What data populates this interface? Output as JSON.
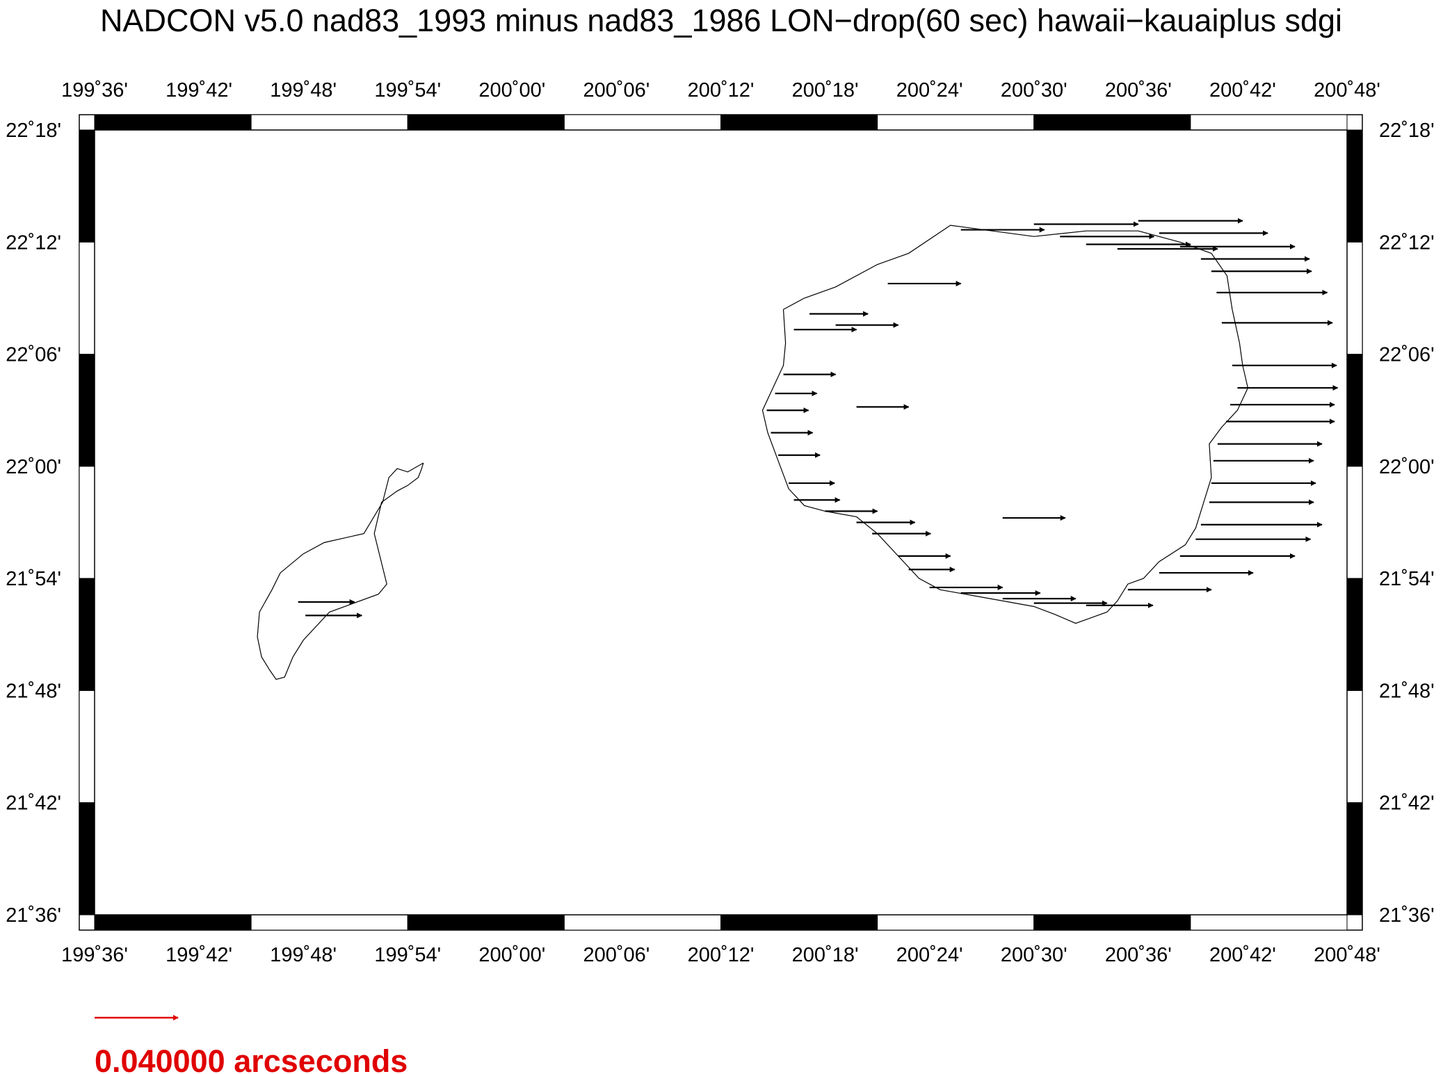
{
  "title": "NADCON v5.0 nad83_1993 minus nad83_1986 LON−drop(60 sec) hawaii−kauaiplus sdgi",
  "axes": {
    "lon_ticks": [
      "199˚36'",
      "199˚42'",
      "199˚48'",
      "199˚54'",
      "200˚00'",
      "200˚06'",
      "200˚12'",
      "200˚18'",
      "200˚24'",
      "200˚30'",
      "200˚36'",
      "200˚42'",
      "200˚48'"
    ],
    "lat_ticks": [
      "22˚18'",
      "22˚12'",
      "22˚06'",
      "22˚00'",
      "21˚54'",
      "21˚48'",
      "21˚42'",
      "21˚36'"
    ],
    "lon_range_deg": [
      199.6,
      200.8
    ],
    "lat_range_deg": [
      21.6,
      22.3
    ]
  },
  "legend": {
    "scale_label": "0.040000 arcseconds",
    "scale_value_arcsec": 0.04,
    "color": "#e00000"
  },
  "colors": {
    "coastline": "#000000",
    "vectors": "#000000",
    "frame": "#000000"
  },
  "coastlines": [
    {
      "name": "Niihau",
      "points": [
        [
          199.915,
          22.003
        ],
        [
          199.9,
          21.995
        ],
        [
          199.89,
          21.998
        ],
        [
          199.882,
          21.99
        ],
        [
          199.876,
          21.968
        ],
        [
          199.858,
          21.94
        ],
        [
          199.82,
          21.932
        ],
        [
          199.8,
          21.922
        ],
        [
          199.778,
          21.905
        ],
        [
          199.77,
          21.89
        ],
        [
          199.758,
          21.87
        ],
        [
          199.756,
          21.848
        ],
        [
          199.76,
          21.83
        ],
        [
          199.768,
          21.818
        ],
        [
          199.774,
          21.81
        ],
        [
          199.782,
          21.812
        ],
        [
          199.79,
          21.83
        ],
        [
          199.8,
          21.845
        ],
        [
          199.825,
          21.87
        ],
        [
          199.872,
          21.886
        ],
        [
          199.88,
          21.895
        ],
        [
          199.868,
          21.94
        ],
        [
          199.875,
          21.968
        ],
        [
          199.89,
          21.978
        ],
        [
          199.9,
          21.983
        ],
        [
          199.91,
          21.99
        ],
        [
          199.913,
          21.997
        ],
        [
          199.915,
          22.003
        ]
      ]
    },
    {
      "name": "Kauai",
      "points": [
        [
          200.26,
          22.14
        ],
        [
          200.28,
          22.15
        ],
        [
          200.31,
          22.16
        ],
        [
          200.35,
          22.18
        ],
        [
          200.38,
          22.19
        ],
        [
          200.42,
          22.215
        ],
        [
          200.46,
          22.21
        ],
        [
          200.5,
          22.205
        ],
        [
          200.55,
          22.21
        ],
        [
          200.6,
          22.21
        ],
        [
          200.64,
          22.2
        ],
        [
          200.67,
          22.19
        ],
        [
          200.685,
          22.17
        ],
        [
          200.69,
          22.14
        ],
        [
          200.697,
          22.11
        ],
        [
          200.7,
          22.09
        ],
        [
          200.705,
          22.07
        ],
        [
          200.695,
          22.05
        ],
        [
          200.68,
          22.035
        ],
        [
          200.668,
          22.02
        ],
        [
          200.67,
          21.99
        ],
        [
          200.66,
          21.96
        ],
        [
          200.655,
          21.945
        ],
        [
          200.645,
          21.93
        ],
        [
          200.62,
          21.915
        ],
        [
          200.605,
          21.9
        ],
        [
          200.59,
          21.895
        ],
        [
          200.58,
          21.88
        ],
        [
          200.57,
          21.87
        ],
        [
          200.555,
          21.865
        ],
        [
          200.54,
          21.86
        ],
        [
          200.52,
          21.868
        ],
        [
          200.5,
          21.875
        ],
        [
          200.47,
          21.88
        ],
        [
          200.44,
          21.885
        ],
        [
          200.41,
          21.89
        ],
        [
          200.39,
          21.9
        ],
        [
          200.37,
          21.92
        ],
        [
          200.35,
          21.94
        ],
        [
          200.33,
          21.955
        ],
        [
          200.3,
          21.96
        ],
        [
          200.28,
          21.965
        ],
        [
          200.265,
          21.98
        ],
        [
          200.255,
          22.005
        ],
        [
          200.245,
          22.03
        ],
        [
          200.24,
          22.05
        ],
        [
          200.25,
          22.07
        ],
        [
          200.26,
          22.09
        ],
        [
          200.262,
          22.11
        ],
        [
          200.26,
          22.14
        ]
      ]
    }
  ],
  "vectors_arcsec": [
    {
      "lon": 199.795,
      "lat": 21.879,
      "dlon": 0.027
    },
    {
      "lon": 199.802,
      "lat": 21.867,
      "dlon": 0.027
    },
    {
      "lon": 200.43,
      "lat": 22.211,
      "dlon": 0.04
    },
    {
      "lon": 200.5,
      "lat": 22.216,
      "dlon": 0.05
    },
    {
      "lon": 200.525,
      "lat": 22.205,
      "dlon": 0.045
    },
    {
      "lon": 200.55,
      "lat": 22.198,
      "dlon": 0.05
    },
    {
      "lon": 200.58,
      "lat": 22.194,
      "dlon": 0.048
    },
    {
      "lon": 200.62,
      "lat": 22.208,
      "dlon": 0.052
    },
    {
      "lon": 200.6,
      "lat": 22.219,
      "dlon": 0.05
    },
    {
      "lon": 200.64,
      "lat": 22.196,
      "dlon": 0.055
    },
    {
      "lon": 200.66,
      "lat": 22.185,
      "dlon": 0.052
    },
    {
      "lon": 200.67,
      "lat": 22.174,
      "dlon": 0.048
    },
    {
      "lon": 200.675,
      "lat": 22.155,
      "dlon": 0.053
    },
    {
      "lon": 200.68,
      "lat": 22.128,
      "dlon": 0.053
    },
    {
      "lon": 200.69,
      "lat": 22.09,
      "dlon": 0.05
    },
    {
      "lon": 200.695,
      "lat": 22.07,
      "dlon": 0.048
    },
    {
      "lon": 200.688,
      "lat": 22.055,
      "dlon": 0.05
    },
    {
      "lon": 200.684,
      "lat": 22.04,
      "dlon": 0.052
    },
    {
      "lon": 200.676,
      "lat": 22.02,
      "dlon": 0.05
    },
    {
      "lon": 200.672,
      "lat": 22.005,
      "dlon": 0.048
    },
    {
      "lon": 200.67,
      "lat": 21.985,
      "dlon": 0.05
    },
    {
      "lon": 200.668,
      "lat": 21.968,
      "dlon": 0.05
    },
    {
      "lon": 200.66,
      "lat": 21.948,
      "dlon": 0.058
    },
    {
      "lon": 200.655,
      "lat": 21.935,
      "dlon": 0.055
    },
    {
      "lon": 200.64,
      "lat": 21.92,
      "dlon": 0.055
    },
    {
      "lon": 200.62,
      "lat": 21.905,
      "dlon": 0.045
    },
    {
      "lon": 200.59,
      "lat": 21.89,
      "dlon": 0.04
    },
    {
      "lon": 200.55,
      "lat": 21.876,
      "dlon": 0.032
    },
    {
      "lon": 200.5,
      "lat": 21.878,
      "dlon": 0.035
    },
    {
      "lon": 200.47,
      "lat": 21.882,
      "dlon": 0.035
    },
    {
      "lon": 200.43,
      "lat": 21.887,
      "dlon": 0.038
    },
    {
      "lon": 200.4,
      "lat": 21.892,
      "dlon": 0.035
    },
    {
      "lon": 200.37,
      "lat": 21.92,
      "dlon": 0.025
    },
    {
      "lon": 200.33,
      "lat": 21.95,
      "dlon": 0.028
    },
    {
      "lon": 200.3,
      "lat": 21.96,
      "dlon": 0.025
    },
    {
      "lon": 200.27,
      "lat": 21.97,
      "dlon": 0.022
    },
    {
      "lon": 200.265,
      "lat": 21.985,
      "dlon": 0.022
    },
    {
      "lon": 200.255,
      "lat": 22.01,
      "dlon": 0.02
    },
    {
      "lon": 200.248,
      "lat": 22.03,
      "dlon": 0.02
    },
    {
      "lon": 200.244,
      "lat": 22.05,
      "dlon": 0.02
    },
    {
      "lon": 200.252,
      "lat": 22.065,
      "dlon": 0.02
    },
    {
      "lon": 200.26,
      "lat": 22.082,
      "dlon": 0.025
    },
    {
      "lon": 200.27,
      "lat": 22.122,
      "dlon": 0.03
    },
    {
      "lon": 200.285,
      "lat": 22.136,
      "dlon": 0.028
    },
    {
      "lon": 200.31,
      "lat": 22.126,
      "dlon": 0.03
    },
    {
      "lon": 200.36,
      "lat": 22.163,
      "dlon": 0.035
    },
    {
      "lon": 200.33,
      "lat": 22.053,
      "dlon": 0.025
    },
    {
      "lon": 200.47,
      "lat": 21.954,
      "dlon": 0.03
    },
    {
      "lon": 200.345,
      "lat": 21.94,
      "dlon": 0.028
    },
    {
      "lon": 200.38,
      "lat": 21.908,
      "dlon": 0.022
    }
  ]
}
